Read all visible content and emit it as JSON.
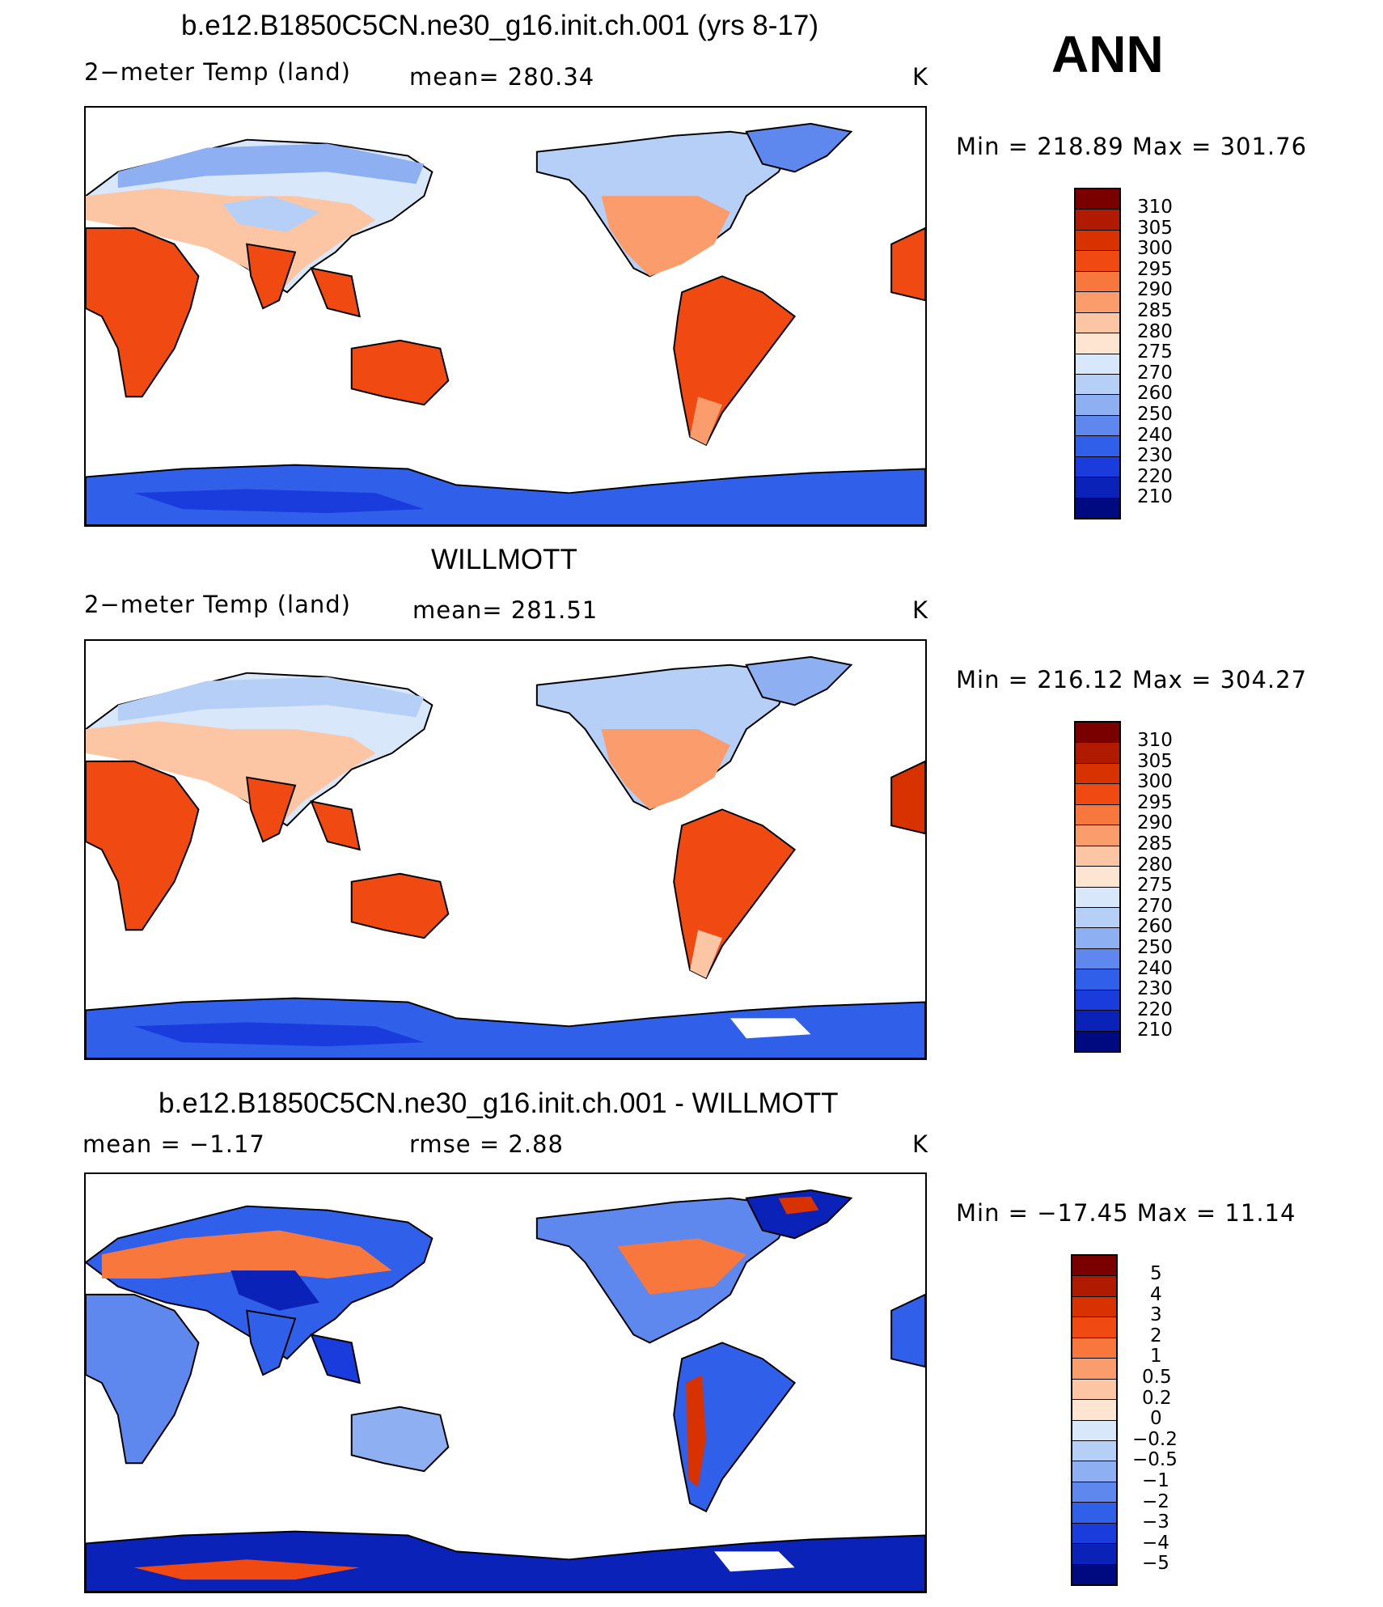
{
  "season": "ANN",
  "panels": [
    {
      "title": "b.e12.B1850C5CN.ne30_g16.init.ch.001 (yrs 8-17)",
      "variable": "2−meter Temp (land)",
      "stat": "mean=  280.34",
      "units": "K",
      "minmax": "Min  =  218.89  Max  =  301.76",
      "colorbar_labels": [
        "310",
        "305",
        "300",
        "295",
        "290",
        "285",
        "280",
        "275",
        "270",
        "260",
        "250",
        "240",
        "230",
        "220",
        "210"
      ],
      "map_legend_name": "model-temperature-map"
    },
    {
      "title": "WILLMOTT",
      "variable": "2−meter Temp (land)",
      "stat": "mean=  281.51",
      "units": "K",
      "minmax": "Min  =  216.12  Max  =  304.27",
      "colorbar_labels": [
        "310",
        "305",
        "300",
        "295",
        "290",
        "285",
        "280",
        "275",
        "270",
        "260",
        "250",
        "240",
        "230",
        "220",
        "210"
      ],
      "map_legend_name": "obs-temperature-map"
    },
    {
      "title": "b.e12.B1850C5CN.ne30_g16.init.ch.001 - WILLMOTT",
      "variable": "mean  =    −1.17",
      "stat": "rmse  =     2.88",
      "units": "K",
      "minmax": "Min  =  −17.45  Max  =     11.14",
      "colorbar_labels": [
        "5",
        "4",
        "3",
        "2",
        "1",
        "0.5",
        "0.2",
        "0",
        "−0.2",
        "−0.5",
        "−1",
        "−2",
        "−3",
        "−4",
        "−5"
      ],
      "map_legend_name": "difference-map"
    }
  ],
  "colors": {
    "palette": [
      "#7a0000",
      "#b01a00",
      "#d83200",
      "#f04a12",
      "#f8773c",
      "#fb9c6c",
      "#fcc6a4",
      "#fde5d2",
      "#d8e7fa",
      "#b6cff6",
      "#8eb0f2",
      "#5f88ee",
      "#3060ea",
      "#1a3cdc",
      "#0a22b8",
      "#000a80"
    ]
  }
}
